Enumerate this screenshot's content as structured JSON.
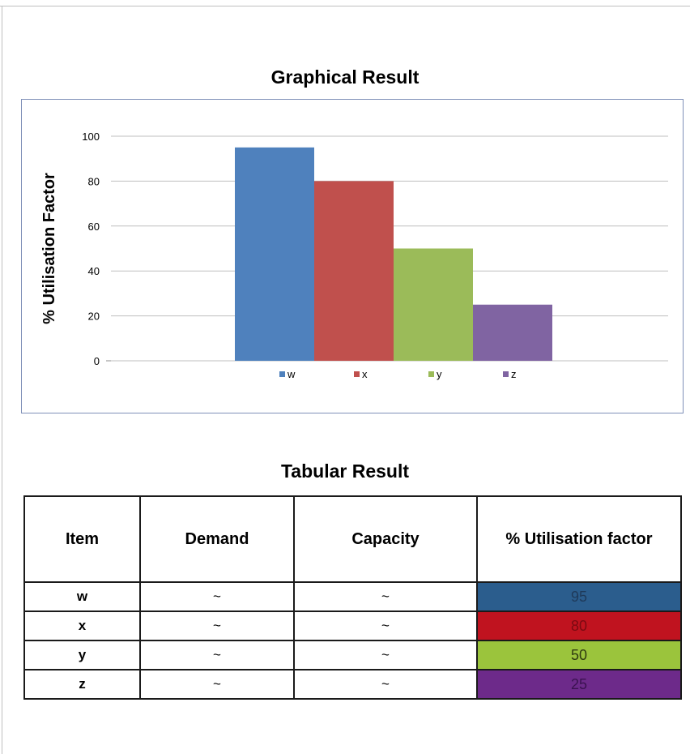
{
  "graphical_title": "Graphical Result",
  "tabular_title": "Tabular Result",
  "chart_data": {
    "type": "bar",
    "title": "",
    "xlabel": "",
    "ylabel": "% Utilisation Factor",
    "ylim": [
      0,
      100
    ],
    "yticks": [
      0,
      20,
      40,
      60,
      80,
      100
    ],
    "grid": true,
    "legend": "bottom",
    "series": [
      {
        "name": "w",
        "values": [
          95
        ],
        "color": "#4f81bd"
      },
      {
        "name": "x",
        "values": [
          80
        ],
        "color": "#c0504d"
      },
      {
        "name": "y",
        "values": [
          50
        ],
        "color": "#9bbb59"
      },
      {
        "name": "z",
        "values": [
          25
        ],
        "color": "#8064a2"
      }
    ]
  },
  "table": {
    "headers": [
      "Item",
      "Demand",
      "Capacity",
      "% Utilisation factor"
    ],
    "rows": [
      {
        "item": "w",
        "demand": "~",
        "capacity": "~",
        "factor": "95",
        "color": "#2b5d8d",
        "text_color": "#1f3a5a"
      },
      {
        "item": "x",
        "demand": "~",
        "capacity": "~",
        "factor": "80",
        "color": "#c0131f",
        "text_color": "#7a0a12"
      },
      {
        "item": "y",
        "demand": "~",
        "capacity": "~",
        "factor": "50",
        "color": "#9bc43c",
        "text_color": "#2e3a10"
      },
      {
        "item": "z",
        "demand": "~",
        "capacity": "~",
        "factor": "25",
        "color": "#6d2a8a",
        "text_color": "#3a1250"
      }
    ]
  }
}
